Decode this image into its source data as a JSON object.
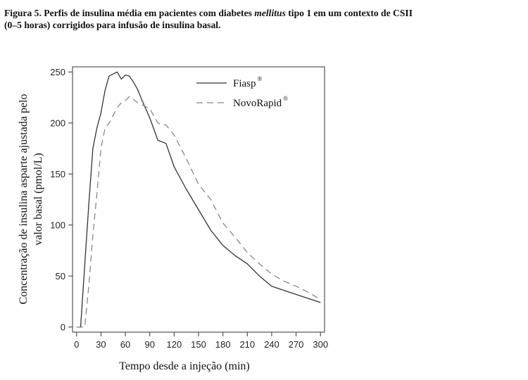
{
  "caption": {
    "prefix": "Figura 5. Perfis de insulina média em pacientes com diabetes ",
    "italic": "mellitus",
    "line1_rest": " tipo 1 em um contexto de CSII",
    "line2": "(0–5 horas) corrigidos para infusão de insulina basal."
  },
  "chart_data": {
    "type": "line",
    "xlabel": "Tempo desde a injeção (min)",
    "ylabel_line1": "Concentração de insulina asparte ajustada pelo",
    "ylabel_line2": "valor basal (pmol/L)",
    "xlim": [
      -5,
      305
    ],
    "ylim": [
      -5,
      255
    ],
    "x_ticks": [
      0,
      30,
      60,
      90,
      120,
      150,
      180,
      210,
      240,
      270,
      300
    ],
    "y_ticks": [
      0,
      50,
      100,
      150,
      200,
      250
    ],
    "legend_position": "top-right",
    "grid": false,
    "series": [
      {
        "name": "Fiasp",
        "name_sup": "®",
        "style": "solid",
        "color": "#333333",
        "x": [
          5,
          10,
          15,
          20,
          25,
          30,
          35,
          40,
          45,
          50,
          55,
          60,
          65,
          70,
          75,
          80,
          90,
          100,
          110,
          120,
          135,
          150,
          165,
          180,
          195,
          210,
          225,
          240,
          255,
          270,
          285,
          300
        ],
        "y": [
          0,
          60,
          120,
          175,
          195,
          210,
          232,
          246,
          248,
          250,
          243,
          247,
          246,
          240,
          233,
          223,
          205,
          183,
          180,
          157,
          135,
          115,
          95,
          80,
          70,
          62,
          50,
          40,
          36,
          32,
          28,
          24
        ]
      },
      {
        "name": "NovoRapid",
        "name_sup": "®",
        "style": "dashed",
        "color": "#888888",
        "x": [
          0,
          10,
          15,
          20,
          25,
          30,
          35,
          40,
          50,
          55,
          60,
          65,
          70,
          75,
          80,
          90,
          100,
          105,
          110,
          120,
          135,
          150,
          165,
          180,
          195,
          210,
          225,
          240,
          255,
          270,
          285,
          300
        ],
        "y": [
          0,
          0,
          40,
          90,
          130,
          175,
          195,
          200,
          215,
          220,
          222,
          226,
          223,
          220,
          218,
          214,
          200,
          198,
          198,
          188,
          165,
          140,
          125,
          102,
          88,
          73,
          62,
          52,
          45,
          40,
          34,
          27
        ]
      }
    ]
  }
}
